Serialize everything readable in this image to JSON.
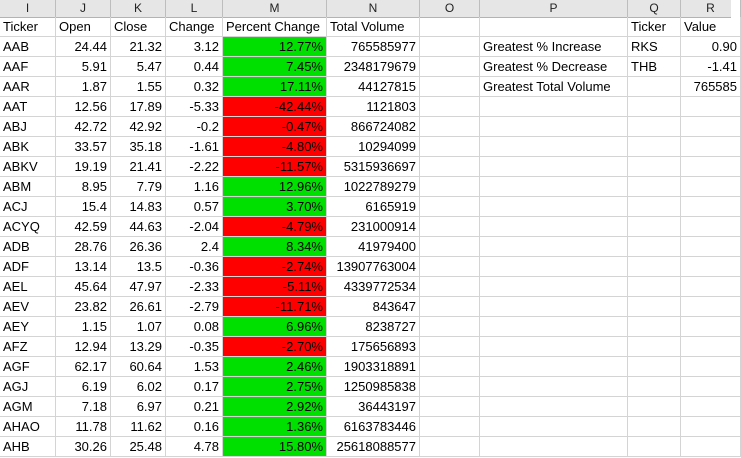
{
  "column_headers": [
    "I",
    "J",
    "K",
    "L",
    "M",
    "N",
    "O",
    "P",
    "Q",
    "R"
  ],
  "table": {
    "headers": [
      "Ticker",
      "Open",
      "Close",
      "Change",
      "Percent Change",
      "Total Volume"
    ],
    "rows": [
      [
        "AAB",
        "24.44",
        "21.32",
        "3.12",
        "12.77%",
        "765585977"
      ],
      [
        "AAF",
        "5.91",
        "5.47",
        "0.44",
        "7.45%",
        "2348179679"
      ],
      [
        "AAR",
        "1.87",
        "1.55",
        "0.32",
        "17.11%",
        "44127815"
      ],
      [
        "AAT",
        "12.56",
        "17.89",
        "-5.33",
        "-42.44%",
        "1121803"
      ],
      [
        "ABJ",
        "42.72",
        "42.92",
        "-0.2",
        "-0.47%",
        "866724082"
      ],
      [
        "ABK",
        "33.57",
        "35.18",
        "-1.61",
        "-4.80%",
        "10294099"
      ],
      [
        "ABKV",
        "19.19",
        "21.41",
        "-2.22",
        "-11.57%",
        "5315936697"
      ],
      [
        "ABM",
        "8.95",
        "7.79",
        "1.16",
        "12.96%",
        "1022789279"
      ],
      [
        "ACJ",
        "15.4",
        "14.83",
        "0.57",
        "3.70%",
        "6165919"
      ],
      [
        "ACYQ",
        "42.59",
        "44.63",
        "-2.04",
        "-4.79%",
        "231000914"
      ],
      [
        "ADB",
        "28.76",
        "26.36",
        "2.4",
        "8.34%",
        "41979400"
      ],
      [
        "ADF",
        "13.14",
        "13.5",
        "-0.36",
        "-2.74%",
        "13907763004"
      ],
      [
        "AEL",
        "45.64",
        "47.97",
        "-2.33",
        "-5.11%",
        "4339772534"
      ],
      [
        "AEV",
        "23.82",
        "26.61",
        "-2.79",
        "-11.71%",
        "843647"
      ],
      [
        "AEY",
        "1.15",
        "1.07",
        "0.08",
        "6.96%",
        "8238727"
      ],
      [
        "AFZ",
        "12.94",
        "13.29",
        "-0.35",
        "-2.70%",
        "175656893"
      ],
      [
        "AGF",
        "62.17",
        "60.64",
        "1.53",
        "2.46%",
        "1903318891"
      ],
      [
        "AGJ",
        "6.19",
        "6.02",
        "0.17",
        "2.75%",
        "1250985838"
      ],
      [
        "AGM",
        "7.18",
        "6.97",
        "0.21",
        "2.92%",
        "36443197"
      ],
      [
        "AHAO",
        "11.78",
        "11.62",
        "0.16",
        "1.36%",
        "6163783446"
      ],
      [
        "AHB",
        "30.26",
        "25.48",
        "4.78",
        "15.80%",
        "25618088577"
      ]
    ],
    "row_sign": [
      "pos",
      "pos",
      "pos",
      "neg",
      "neg",
      "neg",
      "neg",
      "pos",
      "pos",
      "neg",
      "pos",
      "neg",
      "neg",
      "neg",
      "pos",
      "neg",
      "pos",
      "pos",
      "pos",
      "pos",
      "pos"
    ]
  },
  "summary": {
    "header_ticker": "Ticker",
    "header_value": "Value",
    "rows": [
      [
        "Greatest % Increase",
        "RKS",
        "0.90"
      ],
      [
        "Greatest % Decrease",
        "THB",
        "-1.41"
      ],
      [
        "Greatest Total Volume",
        "",
        "765585"
      ]
    ]
  },
  "colors": {
    "positive": "#00e000",
    "negative": "#ff0000"
  }
}
